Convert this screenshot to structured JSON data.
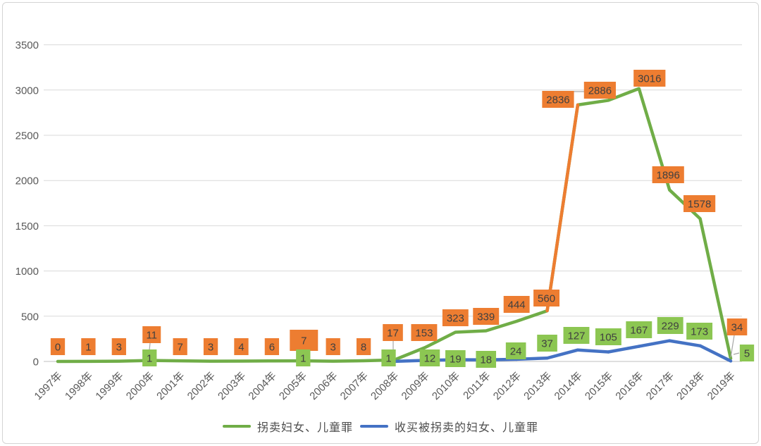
{
  "chart_data": {
    "type": "line",
    "title": "",
    "categories": [
      "1997年",
      "1998年",
      "1999年",
      "2000年",
      "2001年",
      "2002年",
      "2003年",
      "2004年",
      "2005年",
      "2006年",
      "2007年",
      "2008年",
      "2009年",
      "2010年",
      "2011年",
      "2012年",
      "2013年",
      "2014年",
      "2015年",
      "2016年",
      "2017年",
      "2018年",
      "2019年"
    ],
    "series": [
      {
        "name": "拐卖妇女、儿童罪",
        "color": "#70AD47",
        "label_fill": "#ED7D31",
        "values": [
          0,
          1,
          3,
          11,
          7,
          3,
          4,
          6,
          7,
          3,
          8,
          17,
          153,
          323,
          339,
          444,
          560,
          2836,
          2886,
          3016,
          1896,
          1578,
          34
        ]
      },
      {
        "name": "收买被拐卖的妇女、儿童罪",
        "color": "#4472C4",
        "label_fill": "#8CC652",
        "values": [
          null,
          null,
          null,
          1,
          null,
          null,
          null,
          null,
          1,
          null,
          null,
          1,
          12,
          19,
          18,
          24,
          37,
          127,
          105,
          167,
          229,
          173,
          5
        ]
      }
    ],
    "highlight_segment": {
      "series": 0,
      "from_index": 16,
      "to_index": 17,
      "color": "#ED7D31"
    },
    "yticks": [
      0,
      500,
      1000,
      1500,
      2000,
      2500,
      3000,
      3500
    ],
    "ylim": [
      0,
      3500
    ],
    "grid": "horizontal",
    "legend_position": "bottom",
    "label_text_color": "#404040",
    "axis_text_color": "#595959",
    "gridline_color": "#D9D9D9",
    "axis_line_color": "#BFBFBF",
    "leader_line_color": "#A6A6A6"
  }
}
